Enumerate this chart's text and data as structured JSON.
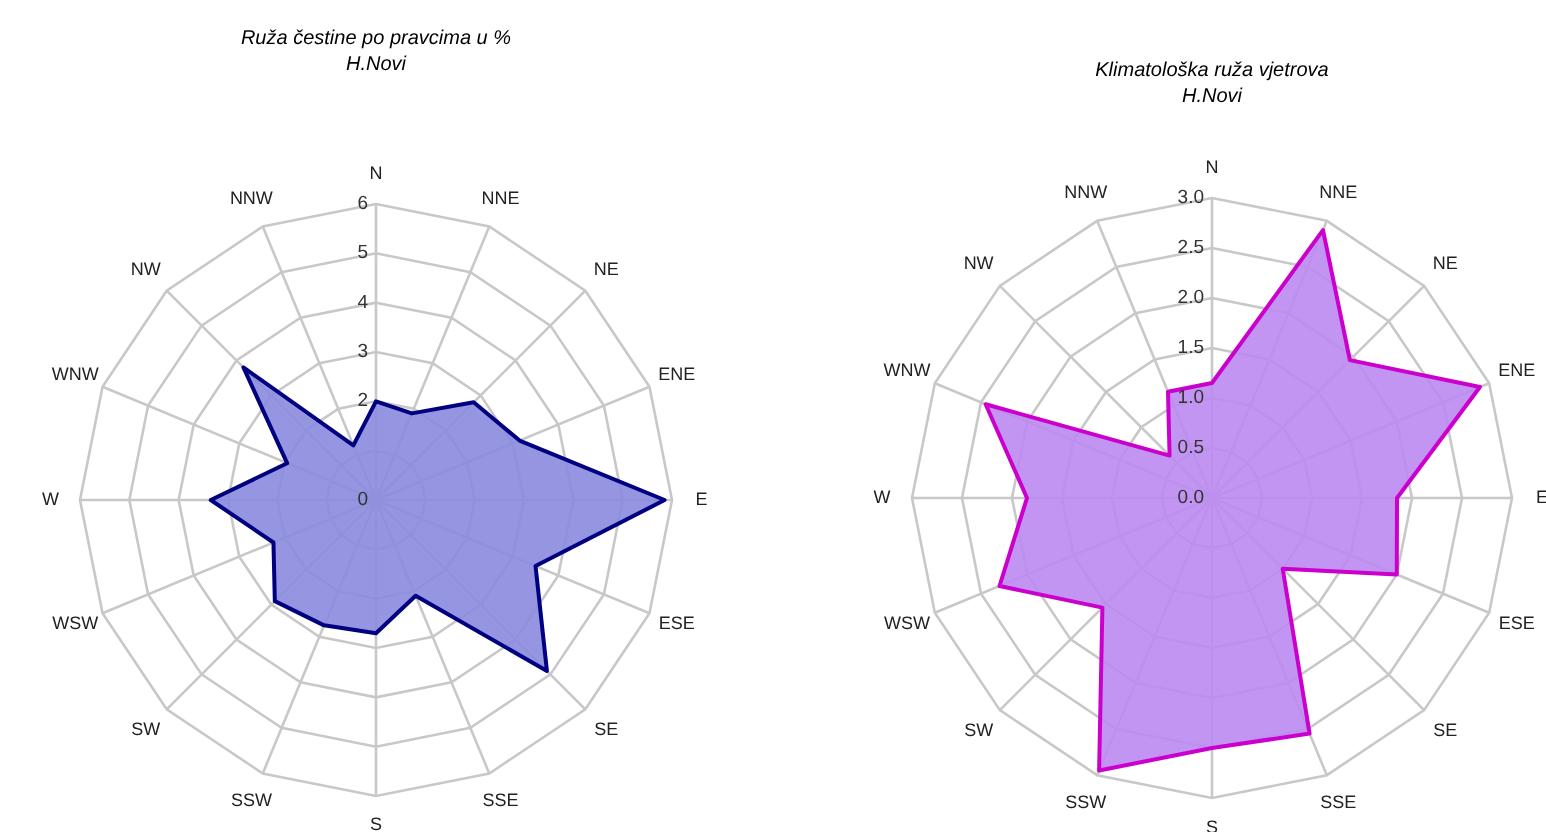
{
  "chart_data": [
    {
      "type": "radar",
      "title": "Ruža čestine po pravcima u %",
      "subtitle": "H.Novi",
      "categories": [
        "N",
        "NNE",
        "NE",
        "ENE",
        "E",
        "ESE",
        "SE",
        "SSE",
        "S",
        "SSW",
        "SW",
        "WSW",
        "W",
        "WNW",
        "NW",
        "NNW"
      ],
      "series": [
        {
          "color": "#000080",
          "values": [
            2.0,
            1.9,
            2.8,
            3.15,
            5.85,
            3.5,
            4.9,
            2.1,
            2.7,
            2.75,
            2.9,
            2.25,
            3.35,
            1.95,
            3.8,
            1.2
          ]
        }
      ],
      "ylim": [
        0,
        6
      ],
      "yticks": [
        0,
        2,
        3,
        4,
        5,
        6
      ],
      "grid": true
    },
    {
      "type": "radar",
      "title": "Klimatološka ruža vjetrova",
      "subtitle": "H.Novi",
      "categories": [
        "N",
        "NNE",
        "NE",
        "ENE",
        "E",
        "ESE",
        "SE",
        "SSE",
        "S",
        "SSW",
        "SW",
        "WSW",
        "W",
        "WNW",
        "NW",
        "NNW"
      ],
      "series": [
        {
          "color": "#cc00cc",
          "values": [
            1.15,
            2.9,
            1.95,
            2.9,
            1.85,
            2.0,
            1.0,
            2.55,
            2.5,
            2.95,
            1.55,
            2.3,
            1.85,
            2.45,
            0.6,
            1.15
          ]
        }
      ],
      "ylim": [
        0,
        3
      ],
      "yticks": [
        {
          "value": 0,
          "label": "0.0"
        },
        {
          "value": 0.5,
          "label": "0.5"
        },
        {
          "value": 1,
          "label": "1.0"
        },
        {
          "value": 1.5,
          "label": "1.5"
        },
        {
          "value": 2,
          "label": "2.0"
        },
        {
          "value": 2.5,
          "label": "2.5"
        },
        {
          "value": 3,
          "label": "3.0"
        }
      ],
      "grid": true
    }
  ]
}
